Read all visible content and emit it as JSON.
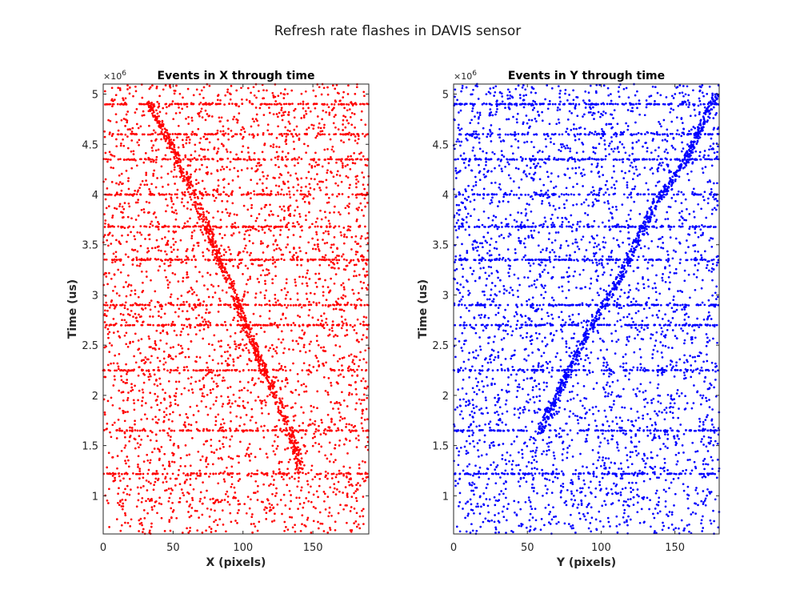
{
  "figure": {
    "title": "Refresh rate flashes in DAVIS sensor"
  },
  "chart_data": [
    {
      "type": "scatter",
      "title": "Events in X through time",
      "xlabel": "X (pixels)",
      "ylabel": "Time (us)",
      "xlim": [
        0,
        190
      ],
      "ylim": [
        0.62,
        5.1
      ],
      "y_scale_exponent_label": "×10",
      "y_scale_exponent": "6",
      "xticks": [
        "0",
        "50",
        "100",
        "150"
      ],
      "yticks": [
        "1",
        "1.5",
        "2",
        "2.5",
        "3",
        "3.5",
        "4",
        "4.5",
        "5"
      ],
      "grid": false,
      "color": "#ff0000",
      "series": [
        {
          "diagonal_trace": {
            "x": [
              33,
              45,
              55,
              65,
              75,
              85,
              95,
              105,
              115,
              125,
              135,
              141
            ],
            "y": [
              4.92,
              4.6,
              4.3,
              4.0,
              3.65,
              3.3,
              2.95,
              2.6,
              2.25,
              1.95,
              1.6,
              1.22
            ]
          }
        }
      ],
      "flash_times": [
        1.22,
        1.65,
        2.25,
        2.7,
        2.9,
        3.35,
        3.68,
        4.0,
        4.35,
        4.6,
        4.9
      ],
      "noise": {
        "x_range": [
          0,
          190
        ],
        "y_range": [
          0.62,
          5.1
        ],
        "approx_points": 3200
      }
    },
    {
      "type": "scatter",
      "title": "Events in Y through time",
      "xlabel": "Y (pixels)",
      "ylabel": "Time (us)",
      "xlim": [
        0,
        180
      ],
      "ylim": [
        0.62,
        5.1
      ],
      "y_scale_exponent_label": "×10",
      "y_scale_exponent": "6",
      "xticks": [
        "0",
        "50",
        "100",
        "150"
      ],
      "yticks": [
        "1",
        "1.5",
        "2",
        "2.5",
        "3",
        "3.5",
        "4",
        "4.5",
        "5"
      ],
      "grid": false,
      "color": "#0000ff",
      "series": [
        {
          "diagonal_trace": {
            "x": [
              58,
              65,
              72,
              80,
              88,
              96,
              104,
              112,
              120,
              128,
              136,
              146,
              158,
              172,
              178
            ],
            "y": [
              1.62,
              1.85,
              2.05,
              2.3,
              2.55,
              2.75,
              2.95,
              3.15,
              3.4,
              3.65,
              3.9,
              4.1,
              4.35,
              4.8,
              5.0
            ]
          }
        }
      ],
      "flash_times": [
        1.22,
        1.65,
        2.25,
        2.7,
        2.9,
        3.35,
        3.68,
        4.0,
        4.35,
        4.6,
        4.9
      ],
      "noise": {
        "x_range": [
          0,
          180
        ],
        "y_range": [
          0.62,
          5.1
        ],
        "approx_points": 3200
      }
    }
  ]
}
